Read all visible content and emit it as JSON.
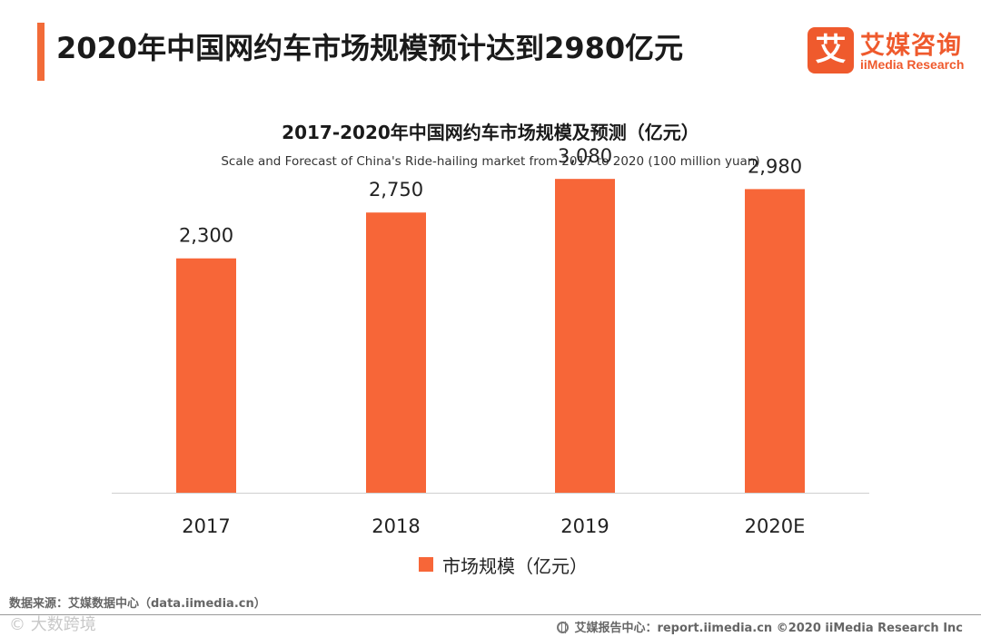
{
  "header": {
    "title": "2020年中国网约车市场规模预计达到2980亿元",
    "accent_color": "#f26b38"
  },
  "brand": {
    "mark": "艾",
    "name_cn": "艾媒咨询",
    "name_en": "iiMedia Research",
    "color": "#ef5a2d"
  },
  "chart_data": {
    "type": "bar",
    "title": "2017-2020年中国网约车市场规模及预测（亿元）",
    "subtitle": "Scale and Forecast of China's Ride-hailing market from 2017 to 2020 (100 million yuan)",
    "categories": [
      "2017",
      "2018",
      "2019",
      "2020E"
    ],
    "series": [
      {
        "name": "市场规模（亿元）",
        "values": [
          2300,
          2750,
          3080,
          2980
        ],
        "color": "#f76638"
      }
    ],
    "data_labels": [
      "2,300",
      "2,750",
      "3,080",
      "2,980"
    ],
    "ylim": [
      0,
      3500
    ],
    "grid": false,
    "legend_position": "bottom"
  },
  "footer": {
    "source": "数据来源：艾媒数据中心（data.iimedia.cn）",
    "watermark": "©  大数跨境",
    "report": "艾媒报告中心：report.iimedia.cn ©2020  iiMedia Research  Inc"
  }
}
